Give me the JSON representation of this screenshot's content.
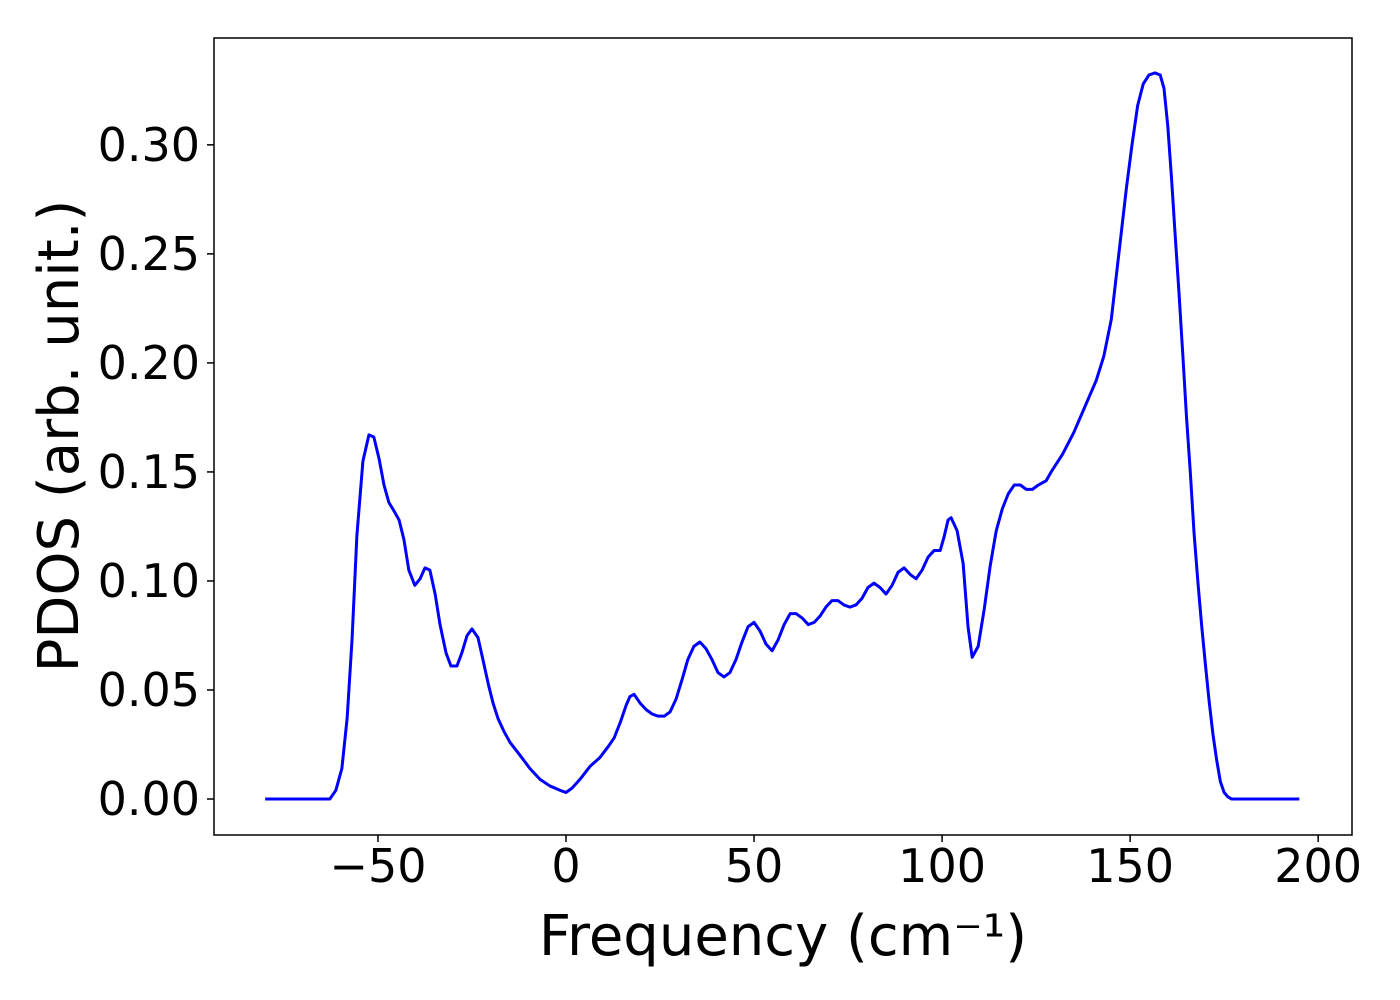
{
  "chart_data": {
    "type": "line",
    "x_label": "Frequency (cm⁻¹)",
    "y_label": "PDOS (arb. unit.)",
    "color": "#0000ff",
    "xlim": [
      -93.6,
      209
    ],
    "ylim": [
      -0.0165,
      0.349
    ],
    "xticks": [
      {
        "value": -50,
        "label": "−50"
      },
      0,
      50,
      100,
      150,
      200
    ],
    "yticks": [
      {
        "value": 0,
        "label": "0.00"
      },
      0.05,
      {
        "value": 0.1,
        "label": "0.10"
      },
      0.15,
      {
        "value": 0.2,
        "label": "0.20"
      },
      0.25,
      {
        "value": 0.3,
        "label": "0.30"
      }
    ],
    "grid": false,
    "x": [
      -80,
      -62.8,
      -61.2,
      -59.6,
      -58.2,
      -56.9,
      -55.6,
      -54.0,
      -52.4,
      -51.1,
      -49.7,
      -48.4,
      -47.1,
      -45.7,
      -44.4,
      -43.1,
      -41.8,
      -40.2,
      -38.8,
      -37.5,
      -36.2,
      -34.8,
      -33.5,
      -31.9,
      -30.6,
      -29.0,
      -27.7,
      -26.3,
      -25.0,
      -23.4,
      -22.1,
      -20.7,
      -19.4,
      -18.1,
      -16.5,
      -14.9,
      -12.2,
      -9.6,
      -6.9,
      -4.3,
      -1.6,
      0,
      1.6,
      3.7,
      6.4,
      9.0,
      11.2,
      12.8,
      14.4,
      16.0,
      17.0,
      18.1,
      19.7,
      21.3,
      22.9,
      24.5,
      26.1,
      27.7,
      29.3,
      30.9,
      32.4,
      34.0,
      35.6,
      37.2,
      38.8,
      40.4,
      42.0,
      43.6,
      45.2,
      46.8,
      48.4,
      50.0,
      51.6,
      53.2,
      54.8,
      56.4,
      58.0,
      59.6,
      61.2,
      62.8,
      64.4,
      66.0,
      67.6,
      69.1,
      70.7,
      72.3,
      73.9,
      75.5,
      77.1,
      78.7,
      80.3,
      81.9,
      83.5,
      85.1,
      86.7,
      88.3,
      89.9,
      91.5,
      93.1,
      94.7,
      96.3,
      97.9,
      99.5,
      100.5,
      101.6,
      102.4,
      104.0,
      105.6,
      106.9,
      108.0,
      109.6,
      111.2,
      112.8,
      114.4,
      116.0,
      117.6,
      119.2,
      120.8,
      122.4,
      124.0,
      125.6,
      127.7,
      129,
      132,
      135,
      138,
      141,
      143,
      145,
      147,
      149,
      150.5,
      152,
      153.5,
      155,
      156.6,
      158,
      159,
      160,
      161,
      162,
      163,
      164,
      165,
      166,
      167,
      168,
      169,
      170,
      171,
      172,
      173,
      174,
      175,
      176,
      177,
      195
    ],
    "values": [
      0,
      0,
      0.004,
      0.014,
      0.037,
      0.073,
      0.121,
      0.155,
      0.167,
      0.166,
      0.156,
      0.144,
      0.136,
      0.132,
      0.128,
      0.119,
      0.105,
      0.098,
      0.101,
      0.106,
      0.105,
      0.094,
      0.08,
      0.067,
      0.061,
      0.061,
      0.067,
      0.075,
      0.078,
      0.074,
      0.064,
      0.053,
      0.044,
      0.037,
      0.031,
      0.026,
      0.02,
      0.014,
      0.009,
      0.006,
      0.004,
      0.003,
      0.005,
      0.009,
      0.015,
      0.019,
      0.024,
      0.028,
      0.035,
      0.043,
      0.047,
      0.048,
      0.044,
      0.041,
      0.039,
      0.038,
      0.038,
      0.04,
      0.046,
      0.055,
      0.064,
      0.07,
      0.072,
      0.069,
      0.064,
      0.058,
      0.056,
      0.058,
      0.064,
      0.072,
      0.079,
      0.081,
      0.077,
      0.071,
      0.068,
      0.073,
      0.08,
      0.085,
      0.085,
      0.083,
      0.08,
      0.081,
      0.084,
      0.088,
      0.091,
      0.091,
      0.089,
      0.088,
      0.089,
      0.092,
      0.097,
      0.099,
      0.097,
      0.094,
      0.098,
      0.104,
      0.106,
      0.103,
      0.101,
      0.105,
      0.111,
      0.114,
      0.114,
      0.12,
      0.128,
      0.129,
      0.123,
      0.108,
      0.079,
      0.065,
      0.07,
      0.087,
      0.107,
      0.123,
      0.133,
      0.14,
      0.144,
      0.144,
      0.142,
      0.142,
      0.144,
      0.146,
      0.15,
      0.158,
      0.168,
      0.18,
      0.192,
      0.203,
      0.22,
      0.25,
      0.28,
      0.3,
      0.318,
      0.328,
      0.332,
      0.333,
      0.332,
      0.326,
      0.309,
      0.285,
      0.258,
      0.232,
      0.204,
      0.175,
      0.15,
      0.122,
      0.1,
      0.08,
      0.062,
      0.045,
      0.03,
      0.018,
      0.008,
      0.003,
      0.001,
      0,
      0
    ]
  }
}
